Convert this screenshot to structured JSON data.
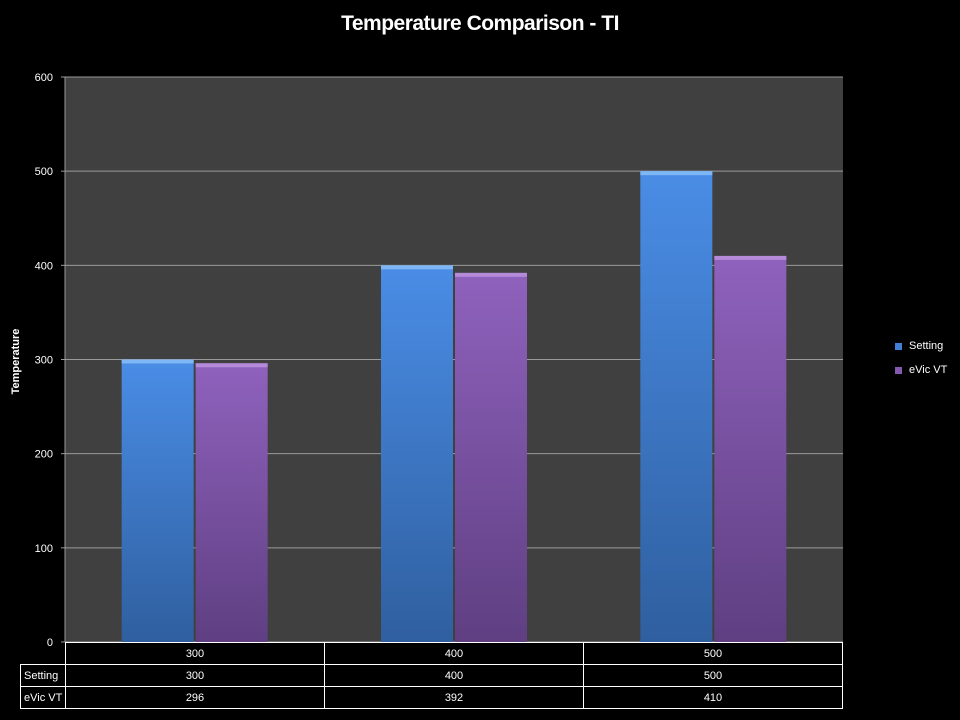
{
  "chart_data": {
    "type": "bar",
    "title": "Temperature Comparison - TI",
    "ylabel": "Temperature",
    "xlabel": "",
    "categories": [
      "300",
      "400",
      "500"
    ],
    "series": [
      {
        "name": "Setting",
        "values": [
          300,
          400,
          500
        ],
        "color": "#3f7fd6"
      },
      {
        "name": "eVic VT",
        "values": [
          296,
          392,
          410
        ],
        "color": "#8459ad"
      }
    ],
    "ylim": [
      0,
      600
    ],
    "yticks": [
      0,
      100,
      200,
      300,
      400,
      500,
      600
    ],
    "grid": true,
    "legend": "right",
    "plot_background": "#404040",
    "data_table": true
  }
}
